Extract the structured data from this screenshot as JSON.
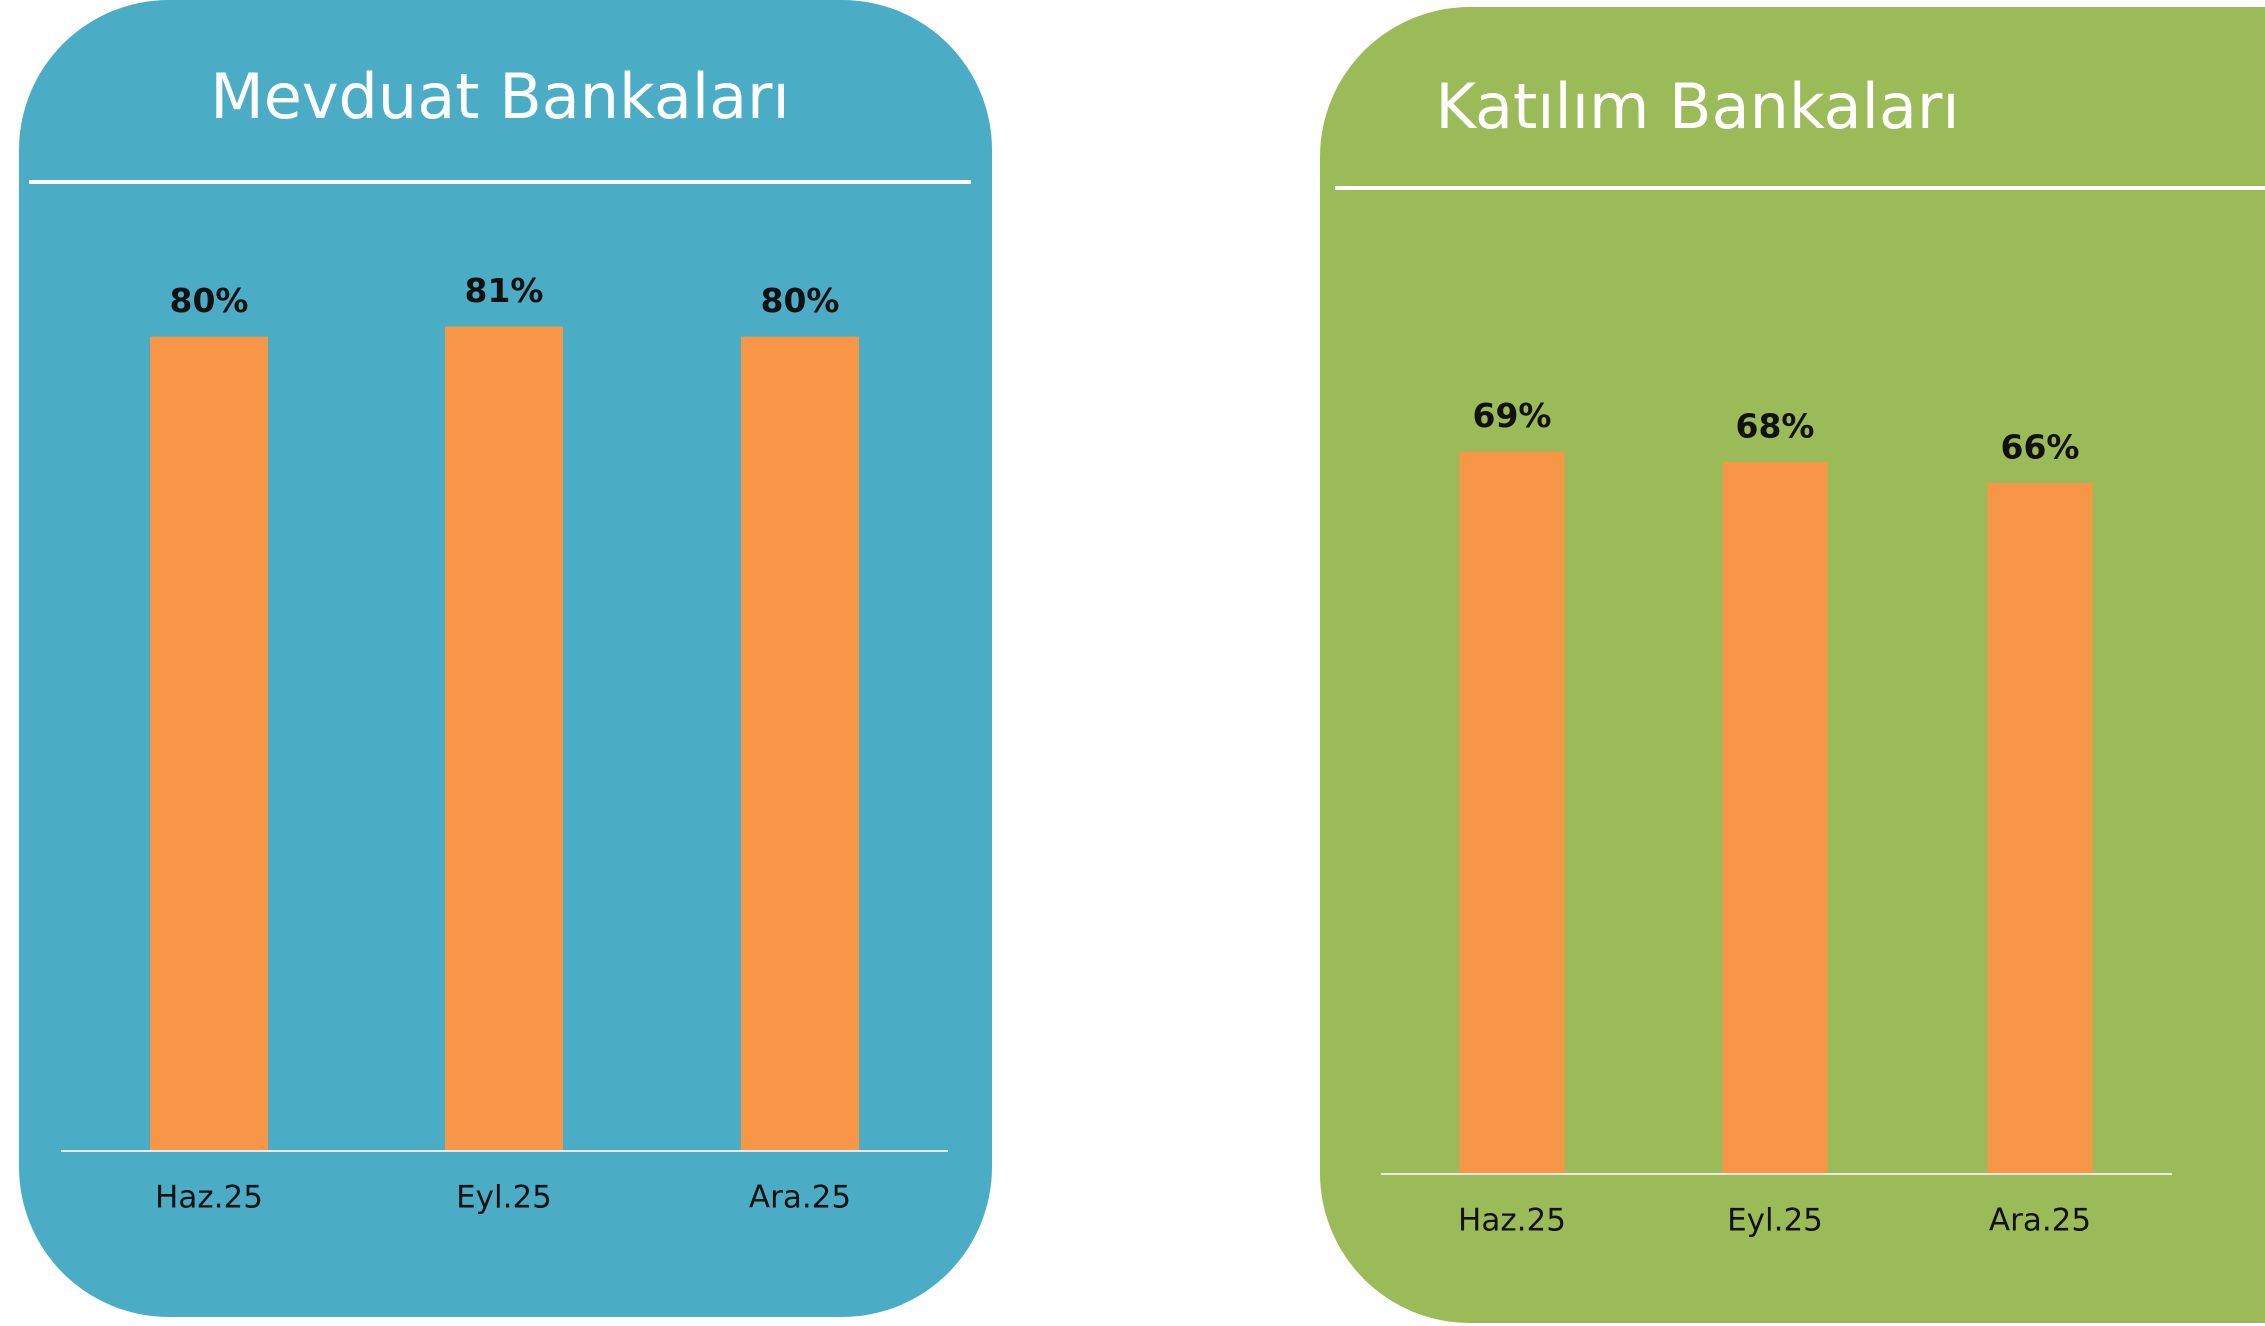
{
  "chart_data": [
    {
      "type": "bar",
      "title": "Mevduat Bankaları",
      "background": "#4bacc6",
      "color": "#f79646",
      "categories": [
        "Haz.25",
        "Eyl.25",
        "Ara.25"
      ],
      "values": [
        80,
        81,
        80
      ],
      "value_labels": [
        "80%",
        "81%",
        "80%"
      ]
    },
    {
      "type": "bar",
      "title": "Katılım Bankaları",
      "background": "#9bbb59",
      "color": "#f79646",
      "categories": [
        "Haz.25",
        "Eyl.25",
        "Ara.25"
      ],
      "values": [
        69,
        68,
        66
      ],
      "value_labels": [
        "69%",
        "68%",
        "66%"
      ]
    }
  ]
}
